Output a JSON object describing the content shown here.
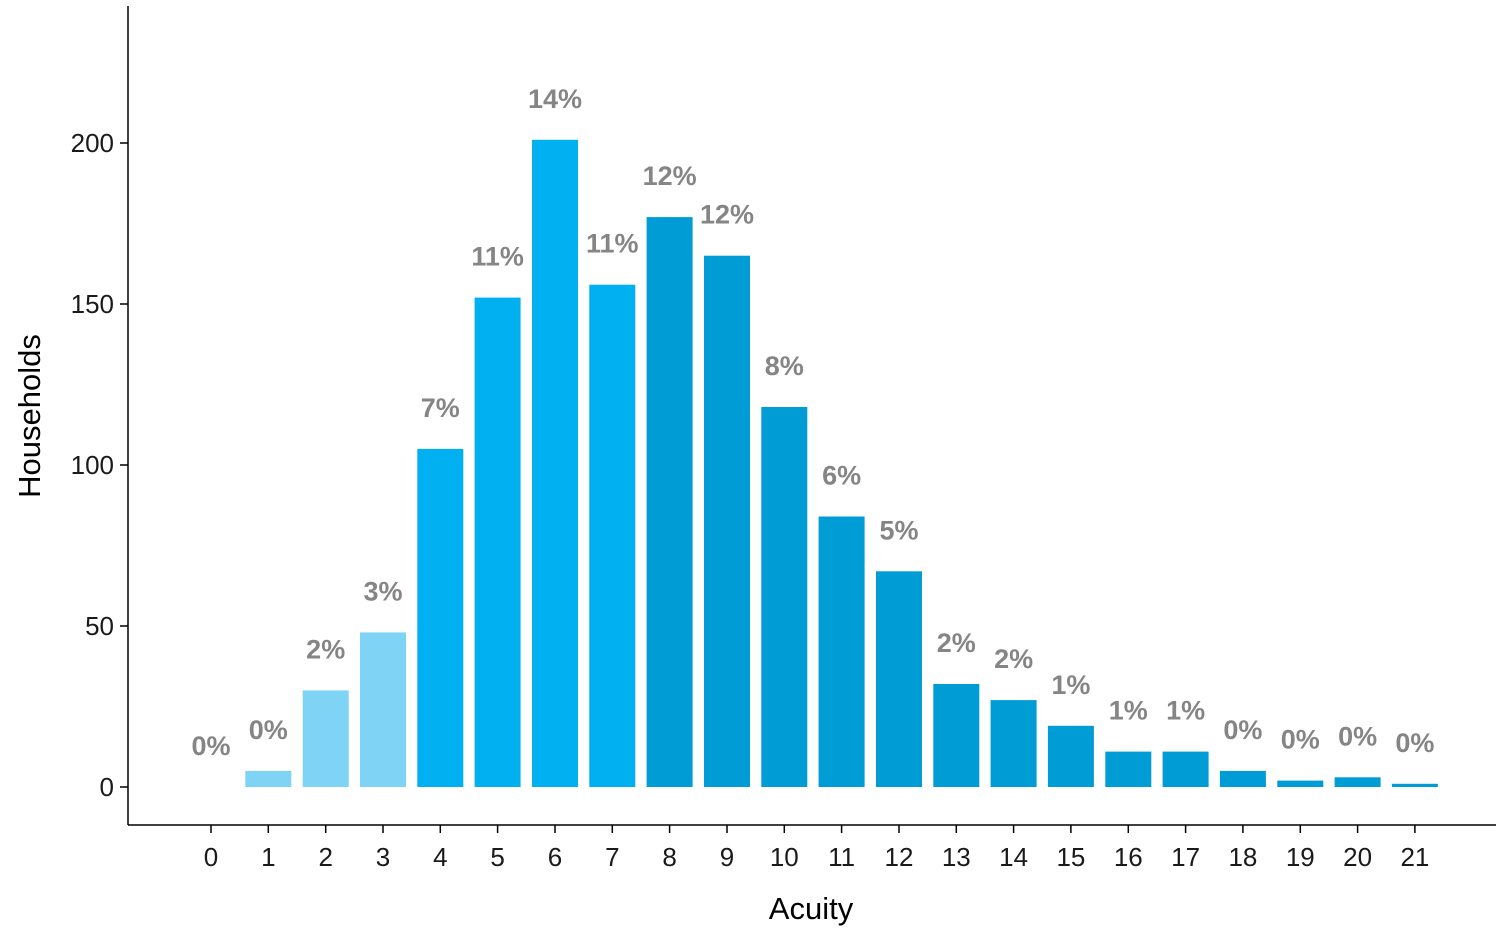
{
  "chart_data": {
    "type": "bar",
    "xlabel": "Acuity",
    "ylabel": "Households",
    "ylim": [
      0,
      240
    ],
    "yticks": [
      0,
      50,
      100,
      150,
      200
    ],
    "categories": [
      "0",
      "1",
      "2",
      "3",
      "4",
      "5",
      "6",
      "7",
      "8",
      "9",
      "10",
      "11",
      "12",
      "13",
      "14",
      "15",
      "16",
      "17",
      "18",
      "19",
      "20",
      "21"
    ],
    "values": [
      0,
      5,
      30,
      48,
      105,
      152,
      201,
      156,
      177,
      165,
      118,
      84,
      67,
      32,
      27,
      19,
      11,
      11,
      5,
      2,
      3,
      1
    ],
    "labels": [
      "0%",
      "0%",
      "2%",
      "3%",
      "7%",
      "11%",
      "14%",
      "11%",
      "12%",
      "12%",
      "8%",
      "6%",
      "5%",
      "2%",
      "2%",
      "1%",
      "1%",
      "1%",
      "0%",
      "0%",
      "0%",
      "0%"
    ],
    "bar_colors": [
      "#7fd4f5",
      "#7fd4f5",
      "#7fd4f5",
      "#7fd4f5",
      "#00b0f0",
      "#00b0f0",
      "#00b0f0",
      "#00b0f0",
      "#009cd6",
      "#009cd6",
      "#009cd6",
      "#009cd6",
      "#009cd6",
      "#009cd6",
      "#009cd6",
      "#009cd6",
      "#009cd6",
      "#009cd6",
      "#009cd6",
      "#009cd6",
      "#009cd6",
      "#009cd6"
    ],
    "label_color": "#858585",
    "grid": false,
    "legend": "none"
  }
}
